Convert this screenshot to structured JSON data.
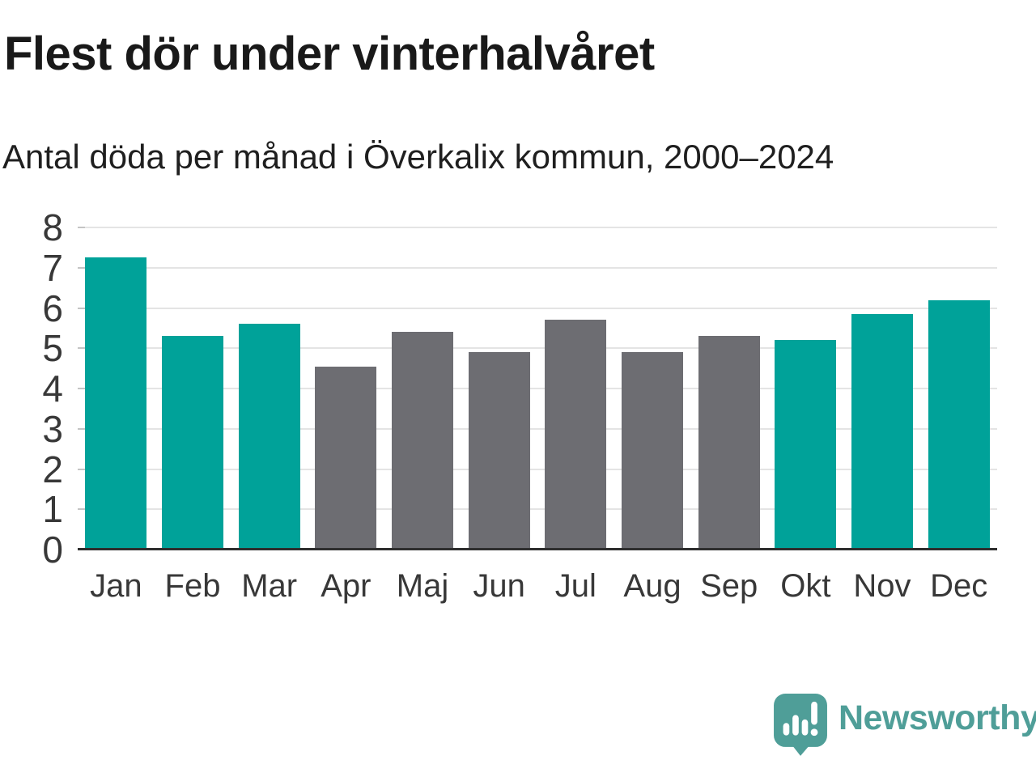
{
  "header": {
    "title": "Flest dör under vinterhalvåret",
    "subtitle": "Antal döda per månad i Överkalix kommun, 2000–2024"
  },
  "chart_data": {
    "type": "bar",
    "title": "Flest dör under vinterhalvåret",
    "subtitle": "Antal döda per månad i Överkalix kommun, 2000–2024",
    "categories": [
      "Jan",
      "Feb",
      "Mar",
      "Apr",
      "Maj",
      "Jun",
      "Jul",
      "Aug",
      "Sep",
      "Okt",
      "Nov",
      "Dec"
    ],
    "values": [
      7.25,
      5.3,
      5.6,
      4.55,
      5.4,
      4.9,
      5.7,
      4.9,
      5.3,
      5.2,
      5.85,
      6.2
    ],
    "highlighted": [
      true,
      true,
      true,
      false,
      false,
      false,
      false,
      false,
      false,
      true,
      true,
      true
    ],
    "xlabel": "",
    "ylabel": "",
    "ylim": [
      0,
      8
    ],
    "yticks": [
      0,
      1,
      2,
      3,
      4,
      5,
      6,
      7,
      8
    ],
    "grid": true,
    "legend": "none",
    "colors": {
      "highlight": "#00a299",
      "base": "#6d6d72",
      "grid": "#e4e4e4",
      "axis": "#2e2e2e",
      "tick": "#c4c4c4",
      "label": "#383838"
    }
  },
  "footer": {
    "brand": "Newsworthy",
    "logo_icon": "newsworthy-speech-bubble-bar-chart-icon",
    "logo_color": "#4f9e98"
  }
}
